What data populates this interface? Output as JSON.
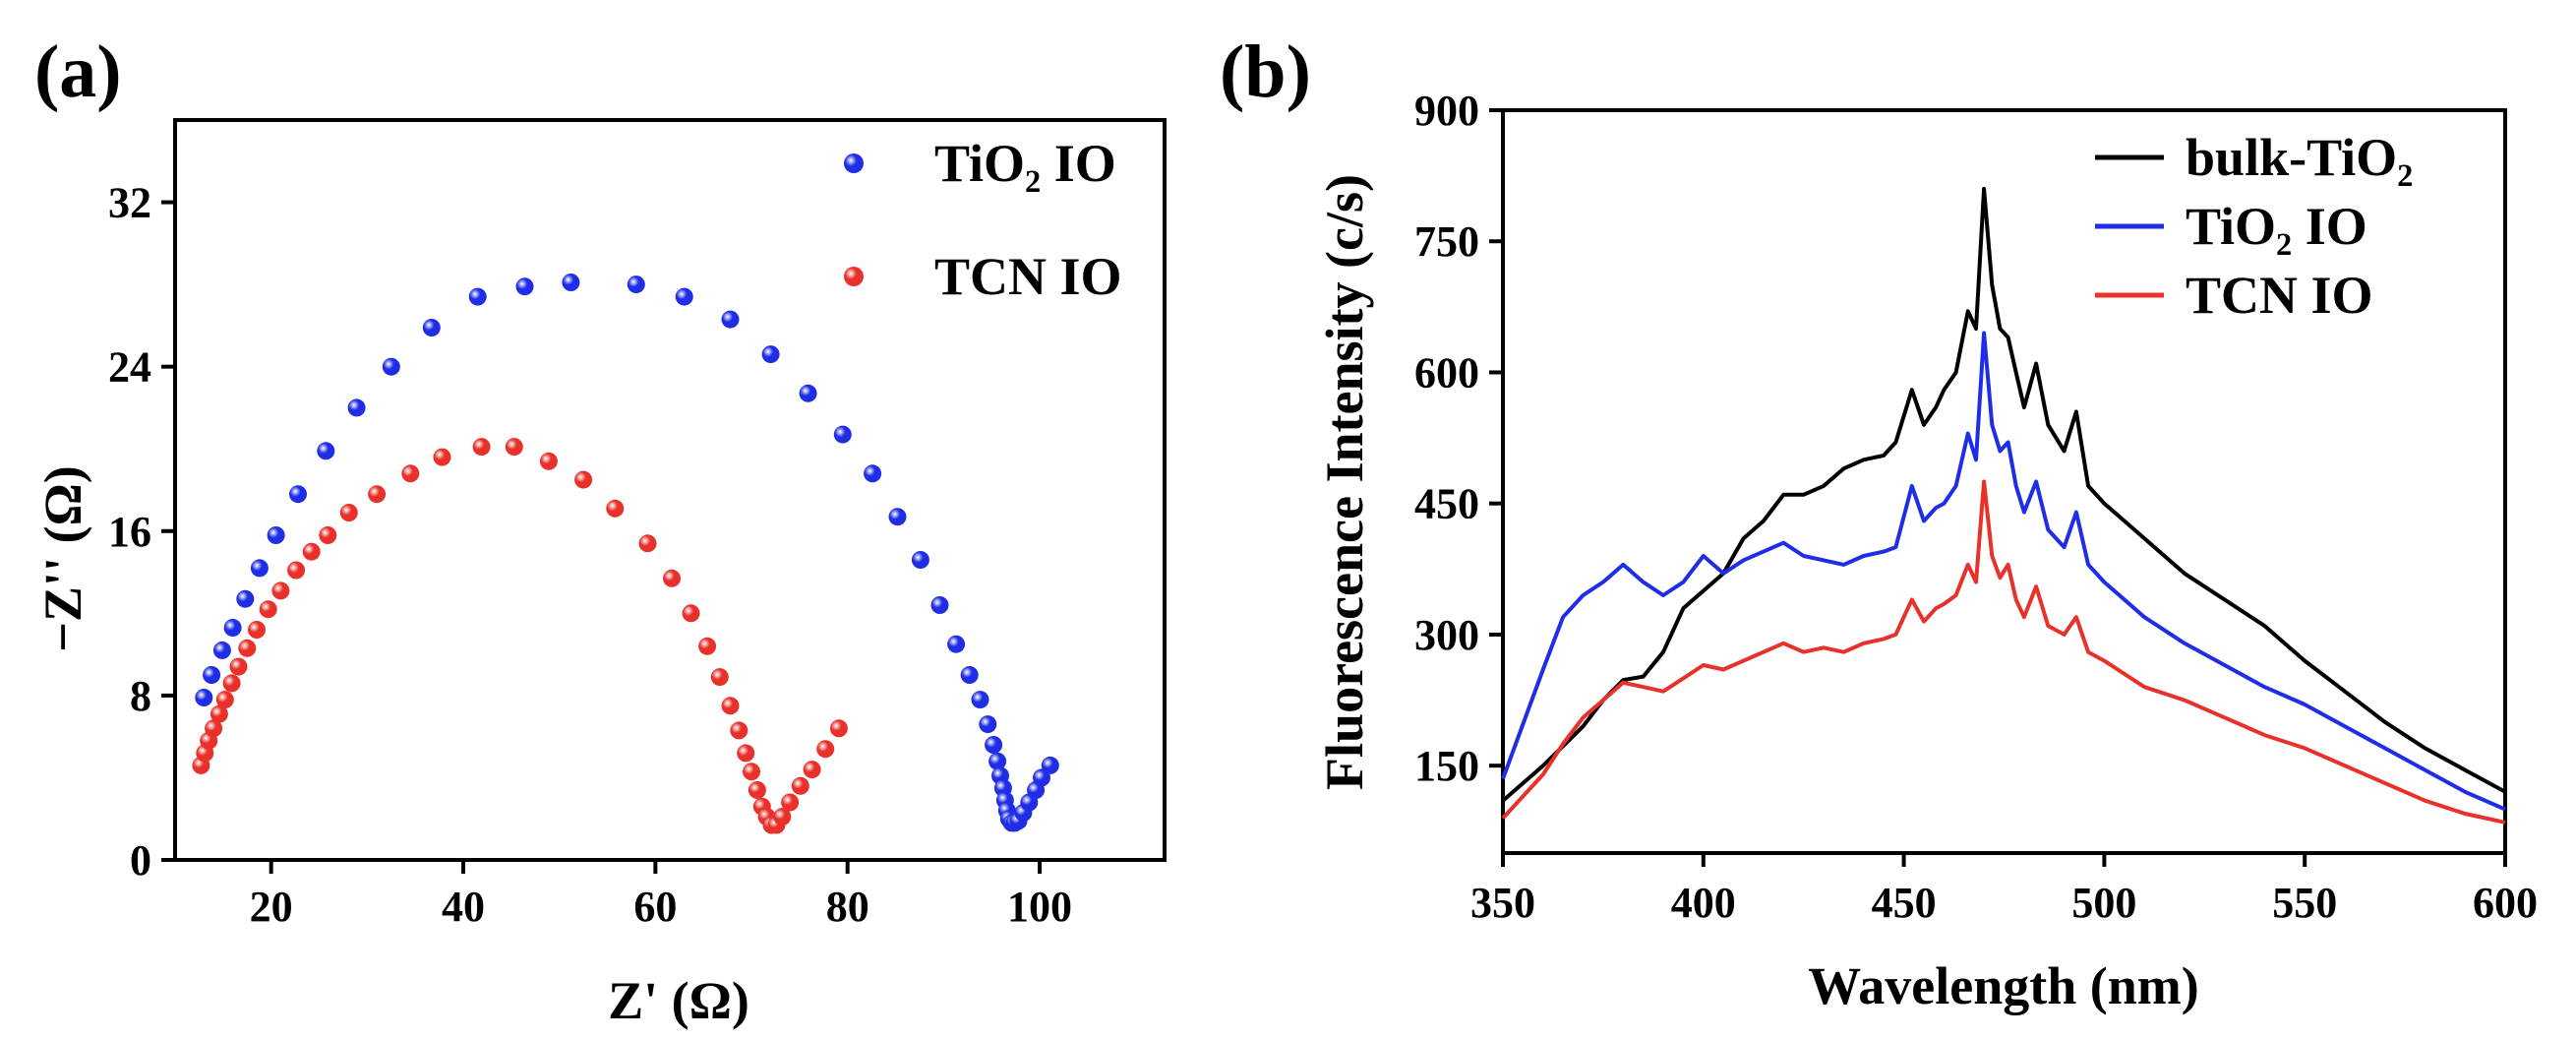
{
  "chart_data": [
    {
      "type": "scatter",
      "panel_label": "(a)",
      "xlabel": "Z' (Ω)",
      "ylabel": "−Z'' (Ω)",
      "xlim": [
        10,
        113
      ],
      "ylim": [
        0,
        36
      ],
      "xticks": [
        20,
        40,
        60,
        80,
        100
      ],
      "yticks": [
        0,
        8,
        16,
        24,
        32
      ],
      "legend_position": "top-right",
      "series": [
        {
          "name": "TiO₂ IO",
          "color": "#1f2ee6",
          "x": [
            13.0,
            13.8,
            14.9,
            16.0,
            17.3,
            18.8,
            20.5,
            22.8,
            25.7,
            28.9,
            32.5,
            36.7,
            41.5,
            46.4,
            51.2,
            58.0,
            63.0,
            67.8,
            72.0,
            75.9,
            79.5,
            82.6,
            85.2,
            87.6,
            89.6,
            91.3,
            92.7,
            93.8,
            94.6,
            95.2,
            95.6,
            95.9,
            96.2,
            96.4,
            96.6,
            96.8,
            97.1,
            97.4,
            97.8,
            98.3,
            98.9,
            99.6,
            100.2,
            101.1
          ],
          "y": [
            7.9,
            9.0,
            10.2,
            11.3,
            12.7,
            14.2,
            15.8,
            17.8,
            19.9,
            22.0,
            24.0,
            25.9,
            27.4,
            27.9,
            28.1,
            28.0,
            27.4,
            26.3,
            24.6,
            22.7,
            20.7,
            18.8,
            16.7,
            14.6,
            12.4,
            10.5,
            9.0,
            7.8,
            6.6,
            5.6,
            4.8,
            4.1,
            3.5,
            2.9,
            2.4,
            2.0,
            1.8,
            1.8,
            1.9,
            2.3,
            2.8,
            3.4,
            4.0,
            4.6
          ]
        },
        {
          "name": "TCN IO",
          "color": "#e8312a",
          "x": [
            12.7,
            13.1,
            13.5,
            14.0,
            14.6,
            15.2,
            15.9,
            16.6,
            17.5,
            18.5,
            19.7,
            21.0,
            22.6,
            24.2,
            25.9,
            28.1,
            31.0,
            34.5,
            37.8,
            41.9,
            45.3,
            48.9,
            52.5,
            55.8,
            59.2,
            61.7,
            63.7,
            65.4,
            66.7,
            67.8,
            68.7,
            69.4,
            70.0,
            70.6,
            71.1,
            71.6,
            72.1,
            72.6,
            73.2,
            74.0,
            75.1,
            76.3,
            77.7,
            79.1
          ],
          "y": [
            4.6,
            5.2,
            5.8,
            6.4,
            7.1,
            7.8,
            8.6,
            9.4,
            10.3,
            11.2,
            12.2,
            13.1,
            14.1,
            15.0,
            15.8,
            16.9,
            17.8,
            18.8,
            19.6,
            20.1,
            20.1,
            19.4,
            18.5,
            17.1,
            15.4,
            13.7,
            12.0,
            10.4,
            8.9,
            7.5,
            6.3,
            5.2,
            4.3,
            3.4,
            2.6,
            2.1,
            1.7,
            1.7,
            2.1,
            2.8,
            3.6,
            4.4,
            5.4,
            6.4
          ]
        }
      ]
    },
    {
      "type": "line",
      "panel_label": "(b)",
      "xlabel": "Wavelength (nm)",
      "ylabel": "Fluorescence Intensity (c/s)",
      "xlim": [
        350,
        600
      ],
      "ylim": [
        50,
        900
      ],
      "xticks": [
        350,
        400,
        450,
        500,
        550,
        600
      ],
      "yticks": [
        150,
        300,
        450,
        600,
        750,
        900
      ],
      "legend_position": "top-right",
      "series": [
        {
          "name": "bulk-TiO₂",
          "color": "#000000",
          "x": [
            350,
            360,
            370,
            375,
            380,
            385,
            390,
            395,
            400,
            405,
            410,
            415,
            420,
            425,
            430,
            435,
            440,
            445,
            448,
            452,
            455,
            458,
            460,
            463,
            466,
            468,
            470,
            472,
            474,
            476,
            478,
            480,
            483,
            486,
            490,
            493,
            496,
            500,
            510,
            520,
            530,
            540,
            550,
            560,
            570,
            580,
            590,
            600
          ],
          "y": [
            110,
            150,
            195,
            225,
            248,
            252,
            280,
            330,
            350,
            370,
            410,
            430,
            460,
            460,
            470,
            490,
            500,
            505,
            520,
            580,
            540,
            560,
            580,
            600,
            670,
            650,
            810,
            700,
            650,
            640,
            600,
            560,
            610,
            540,
            510,
            555,
            470,
            450,
            410,
            370,
            340,
            310,
            270,
            235,
            200,
            170,
            145,
            120
          ]
        },
        {
          "name": "TiO₂ IO",
          "color": "#1f2ee6",
          "x": [
            350,
            360,
            365,
            370,
            375,
            380,
            385,
            390,
            395,
            400,
            405,
            410,
            415,
            420,
            425,
            430,
            435,
            440,
            445,
            448,
            452,
            455,
            458,
            460,
            463,
            466,
            468,
            470,
            472,
            474,
            476,
            478,
            480,
            483,
            486,
            490,
            493,
            496,
            500,
            510,
            520,
            530,
            540,
            550,
            560,
            570,
            580,
            590,
            600
          ],
          "y": [
            135,
            260,
            320,
            345,
            360,
            380,
            360,
            345,
            360,
            390,
            370,
            385,
            395,
            405,
            390,
            385,
            380,
            390,
            395,
            400,
            470,
            430,
            445,
            450,
            470,
            530,
            500,
            645,
            540,
            510,
            520,
            470,
            440,
            475,
            420,
            400,
            440,
            380,
            360,
            320,
            290,
            265,
            240,
            220,
            195,
            170,
            145,
            120,
            100
          ]
        },
        {
          "name": "TCN IO",
          "color": "#e8312a",
          "x": [
            350,
            360,
            365,
            370,
            375,
            380,
            385,
            390,
            395,
            400,
            405,
            410,
            415,
            420,
            425,
            430,
            435,
            440,
            445,
            448,
            452,
            455,
            458,
            460,
            463,
            466,
            468,
            470,
            472,
            474,
            476,
            478,
            480,
            483,
            486,
            490,
            493,
            496,
            500,
            510,
            520,
            530,
            540,
            550,
            560,
            570,
            580,
            590,
            600
          ],
          "y": [
            90,
            140,
            175,
            205,
            225,
            245,
            240,
            235,
            250,
            265,
            260,
            270,
            280,
            290,
            280,
            285,
            280,
            290,
            295,
            300,
            340,
            315,
            330,
            335,
            345,
            380,
            360,
            475,
            390,
            365,
            380,
            340,
            320,
            355,
            310,
            300,
            320,
            280,
            270,
            240,
            225,
            205,
            185,
            170,
            150,
            130,
            110,
            95,
            85
          ]
        }
      ]
    }
  ]
}
